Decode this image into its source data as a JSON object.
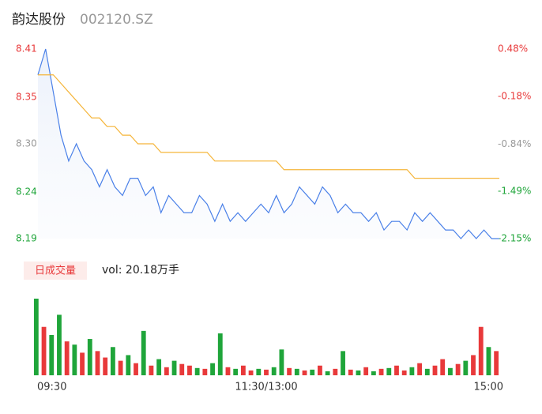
{
  "header": {
    "name": "韵达股份",
    "code": "002120.SZ"
  },
  "chart_data": [
    {
      "type": "line",
      "xlim": [
        0,
        60
      ],
      "ylim": [
        8.19,
        8.41
      ],
      "yticks": [
        8.41,
        {
          "value": 8.354,
          "label": "8.35"
        },
        {
          "value": 8.3,
          "label": "8.30"
        },
        {
          "value": 8.244,
          "label": "8.24"
        },
        8.19
      ],
      "y2lim": [
        -2.15,
        0.48
      ],
      "y2ticks": [
        {
          "value": 0.48,
          "label": "0.48%"
        },
        {
          "value": -0.18,
          "label": "-0.18%"
        },
        {
          "value": -0.84,
          "label": "-0.84%"
        },
        {
          "value": -1.49,
          "label": "-1.49%"
        },
        {
          "value": -2.15,
          "label": "-2.15%"
        }
      ],
      "ytick_colors": [
        "#e8393a",
        "#e8393a",
        "#999999",
        "#1fa53a",
        "#1fa53a"
      ],
      "series": [
        {
          "name": "price",
          "color": "#4a80e8",
          "values": [
            8.38,
            8.41,
            8.36,
            8.31,
            8.28,
            8.3,
            8.28,
            8.27,
            8.25,
            8.27,
            8.25,
            8.24,
            8.26,
            8.26,
            8.24,
            8.25,
            8.22,
            8.24,
            8.23,
            8.22,
            8.22,
            8.24,
            8.23,
            8.21,
            8.23,
            8.21,
            8.22,
            8.21,
            8.22,
            8.23,
            8.22,
            8.24,
            8.22,
            8.23,
            8.25,
            8.24,
            8.23,
            8.25,
            8.24,
            8.22,
            8.23,
            8.22,
            8.22,
            8.21,
            8.22,
            8.2,
            8.21,
            8.21,
            8.2,
            8.22,
            8.21,
            8.22,
            8.21,
            8.2,
            8.2,
            8.19,
            8.2,
            8.19,
            8.2,
            8.19,
            8.19
          ]
        },
        {
          "name": "average",
          "color": "#f5b53a",
          "values": [
            8.38,
            8.38,
            8.38,
            8.37,
            8.36,
            8.35,
            8.34,
            8.33,
            8.33,
            8.32,
            8.32,
            8.31,
            8.31,
            8.3,
            8.3,
            8.3,
            8.29,
            8.29,
            8.29,
            8.29,
            8.29,
            8.29,
            8.29,
            8.28,
            8.28,
            8.28,
            8.28,
            8.28,
            8.28,
            8.28,
            8.28,
            8.28,
            8.27,
            8.27,
            8.27,
            8.27,
            8.27,
            8.27,
            8.27,
            8.27,
            8.27,
            8.27,
            8.27,
            8.27,
            8.27,
            8.27,
            8.27,
            8.27,
            8.27,
            8.26,
            8.26,
            8.26,
            8.26,
            8.26,
            8.26,
            8.26,
            8.26,
            8.26,
            8.26,
            8.26,
            8.26
          ]
        }
      ]
    },
    {
      "type": "bar",
      "title": "日成交量",
      "annotation": "vol: 20.18万手",
      "xlim": [
        0,
        60
      ],
      "xticks": [
        {
          "value": 0,
          "label": "09:30"
        },
        {
          "value": 30,
          "label": "11:30/13:00"
        },
        {
          "value": 60,
          "label": "15:00"
        }
      ],
      "ylim": [
        0,
        95
      ],
      "values": [
        95,
        60,
        50,
        75,
        42,
        38,
        28,
        45,
        30,
        22,
        35,
        18,
        25,
        15,
        55,
        12,
        20,
        10,
        18,
        14,
        12,
        9,
        8,
        15,
        52,
        10,
        8,
        12,
        6,
        8,
        7,
        10,
        32,
        9,
        8,
        6,
        7,
        12,
        5,
        8,
        30,
        7,
        6,
        10,
        5,
        8,
        9,
        12,
        6,
        10,
        15,
        8,
        12,
        20,
        9,
        14,
        18,
        25,
        60,
        35,
        30
      ],
      "colors": [
        "#1fa53a",
        "#e8393a",
        "#1fa53a",
        "#1fa53a",
        "#e8393a",
        "#1fa53a",
        "#e8393a",
        "#1fa53a",
        "#e8393a",
        "#e8393a",
        "#1fa53a",
        "#e8393a",
        "#1fa53a",
        "#e8393a",
        "#1fa53a",
        "#e8393a",
        "#1fa53a",
        "#e8393a",
        "#1fa53a",
        "#e8393a",
        "#e8393a",
        "#1fa53a",
        "#e8393a",
        "#1fa53a",
        "#1fa53a",
        "#e8393a",
        "#1fa53a",
        "#e8393a",
        "#e8393a",
        "#1fa53a",
        "#e8393a",
        "#1fa53a",
        "#1fa53a",
        "#e8393a",
        "#1fa53a",
        "#e8393a",
        "#1fa53a",
        "#e8393a",
        "#1fa53a",
        "#e8393a",
        "#1fa53a",
        "#e8393a",
        "#1fa53a",
        "#e8393a",
        "#1fa53a",
        "#e8393a",
        "#1fa53a",
        "#e8393a",
        "#e8393a",
        "#1fa53a",
        "#e8393a",
        "#1fa53a",
        "#e8393a",
        "#e8393a",
        "#1fa53a",
        "#e8393a",
        "#1fa53a",
        "#e8393a",
        "#e8393a",
        "#1fa53a",
        "#e8393a"
      ]
    }
  ]
}
